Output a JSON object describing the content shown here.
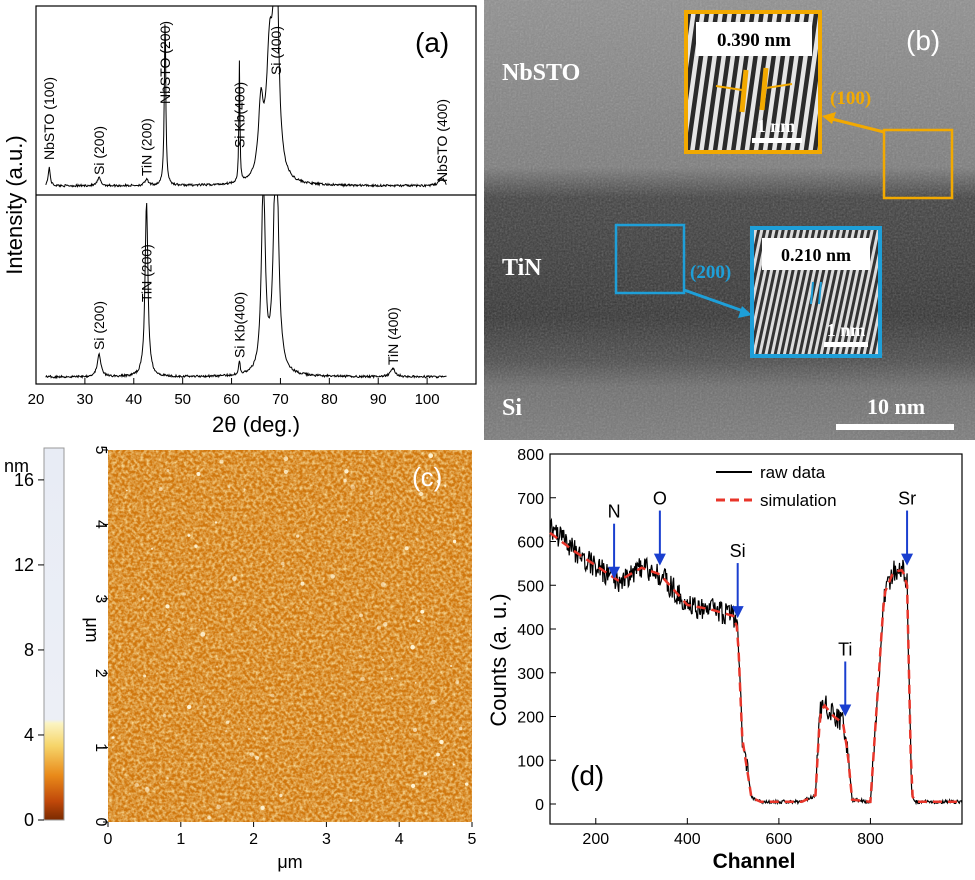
{
  "figure": {
    "panel_a": {
      "label": "(a)",
      "ylabel": "Intensity",
      "ylabel_unit": "(a.u.)",
      "xlabel_prefix": "2",
      "xlabel_theta": "θ",
      "xlabel_suffix": " (deg.)",
      "xticks": [
        "20",
        "30",
        "40",
        "50",
        "60",
        "70",
        "80",
        "90",
        "100"
      ],
      "top_peaks": [
        {
          "label": "NbSTO (100)",
          "pos": 22.7
        },
        {
          "label": "Si (200)",
          "pos": 32.9
        },
        {
          "label": "TiN (200)",
          "pos": 42.6
        },
        {
          "label": "NbSTO (200)",
          "pos": 46.4
        },
        {
          "label": "Si Kb(400)",
          "pos": 61.6
        },
        {
          "label": "Si (400)",
          "pos": 69.1
        },
        {
          "label": "NbSTO (400)",
          "pos": 103.0
        }
      ],
      "bottom_peaks": [
        {
          "label": "Si (200)",
          "pos": 32.9
        },
        {
          "label": "TiN (200)",
          "pos": 42.6
        },
        {
          "label": "Si Kb(400)",
          "pos": 61.6
        },
        {
          "label": "TiN (400)",
          "pos": 93.0
        }
      ]
    },
    "panel_b": {
      "label": "(b)",
      "layers": [
        "NbSTO",
        "TiN",
        "Si"
      ],
      "inset1": {
        "spacing": "0.390 nm",
        "scale": "1 nm",
        "plane": "(100)",
        "color": "#f2a900"
      },
      "inset2": {
        "spacing": "0.210 nm",
        "scale": "1 nm",
        "plane": "(200)",
        "color": "#1e9fd8"
      },
      "scalebar": "10 nm"
    },
    "panel_c": {
      "label": "(c)",
      "colorbar_unit": "nm",
      "colorbar_ticks": [
        "16",
        "12",
        "8",
        "4",
        "0"
      ],
      "xlabel": "μm",
      "ylabel": "μm",
      "xticks": [
        "0",
        "1",
        "2",
        "3",
        "4",
        "5"
      ],
      "yticks": [
        "0",
        "1",
        "2",
        "3",
        "4",
        "5"
      ]
    },
    "panel_d": {
      "label": "(d)",
      "ylabel": "Counts (a. u.)",
      "xlabel": "Channel",
      "legend": [
        "raw data",
        "simulation"
      ],
      "element_markers": [
        "N",
        "O",
        "Si",
        "Ti",
        "Sr"
      ]
    }
  },
  "chart_data": [
    {
      "type": "line",
      "title": "(a)",
      "xlabel": "2θ (deg.)",
      "ylabel": "Intensity (a.u.)",
      "xlim": [
        20,
        110
      ],
      "series": [
        {
          "peaks_2theta": [
            22.7,
            32.9,
            42.6,
            46.4,
            61.6,
            69.1,
            103.0
          ]
        },
        {
          "peaks_2theta": [
            32.9,
            42.6,
            61.6,
            66.5,
            69.1,
            93.0
          ]
        }
      ]
    },
    {
      "type": "line",
      "title": "(d)",
      "xlabel": "Channel",
      "ylabel": "Counts (a. u.)",
      "xlim": [
        100,
        1000
      ],
      "ylim": [
        0,
        800
      ],
      "legend": "top-right",
      "series": [
        {
          "name": "raw data",
          "color": "#000000",
          "x": [
            100,
            150,
            200,
            250,
            300,
            340,
            400,
            450,
            500,
            510,
            520,
            540,
            560,
            600,
            650,
            680,
            690,
            700,
            720,
            740,
            750,
            760,
            800,
            830,
            850,
            870,
            880,
            890,
            900,
            1000
          ],
          "y": [
            630,
            580,
            545,
            510,
            540,
            525,
            455,
            445,
            430,
            400,
            150,
            15,
            5,
            5,
            5,
            20,
            210,
            225,
            200,
            185,
            120,
            10,
            5,
            480,
            530,
            535,
            500,
            20,
            5,
            5
          ]
        },
        {
          "name": "simulation",
          "color": "#e8352a",
          "x": [
            100,
            150,
            200,
            250,
            300,
            340,
            400,
            450,
            500,
            510,
            520,
            540,
            560,
            600,
            650,
            680,
            690,
            700,
            720,
            740,
            750,
            760,
            800,
            830,
            850,
            870,
            880,
            890,
            900,
            1000
          ],
          "y": [
            620,
            580,
            545,
            510,
            540,
            525,
            455,
            445,
            430,
            400,
            150,
            15,
            5,
            5,
            5,
            20,
            210,
            225,
            200,
            185,
            120,
            10,
            5,
            480,
            530,
            535,
            500,
            20,
            5,
            5
          ]
        }
      ],
      "annotations": [
        {
          "text": "N",
          "x": 240
        },
        {
          "text": "O",
          "x": 340
        },
        {
          "text": "Si",
          "x": 510
        },
        {
          "text": "Ti",
          "x": 745
        },
        {
          "text": "Sr",
          "x": 880
        }
      ]
    }
  ]
}
